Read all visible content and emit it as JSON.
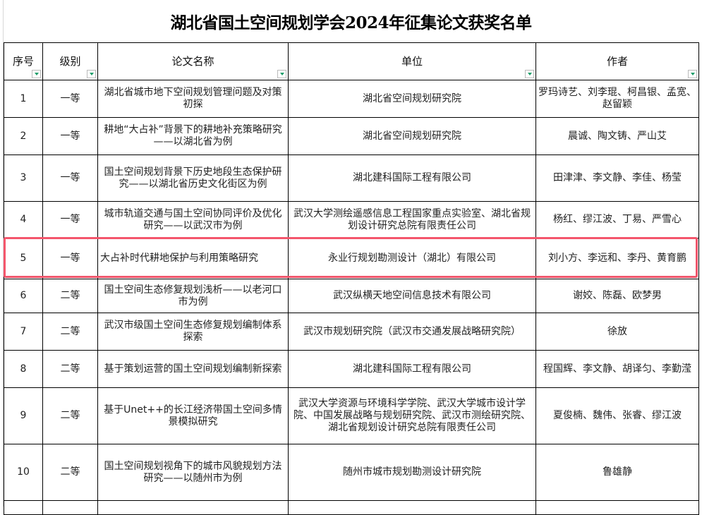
{
  "title": "湖北省国土空间规划学会2024年征集论文获奖名单",
  "columns": [
    "序号",
    "级别",
    "论文名称",
    "单位",
    "作者"
  ],
  "rows": [
    {
      "no": "1",
      "level": "一等",
      "paper": "湖北省城市地下空间规划管理问题及对策初探",
      "unit": "湖北省空间规划研究院",
      "authors": "罗玛诗艺、刘李琨、柯昌银、孟宽、赵留颖"
    },
    {
      "no": "2",
      "level": "一等",
      "paper": "耕地“大占补”背景下的耕地补充策略研究——以湖北省为例",
      "unit": "湖北省空间规划研究院",
      "authors": "晨诚、陶文铸、严山艾"
    },
    {
      "no": "3",
      "level": "一等",
      "paper": "国土空间规划背景下历史地段生态保护研究——以湖北省历史文化街区为例",
      "unit": "湖北建科国际工程有限公司",
      "authors": "田津津、李文静、李佳、杨莹"
    },
    {
      "no": "4",
      "level": "一等",
      "paper": "城市轨道交通与国土空间协同评价及优化研究——以武汉市为例",
      "unit": "武汉大学测绘遥感信息工程国家重点实验室、湖北省规划设计研究总院有限责任公司",
      "authors": "杨红、缪江波、丁易、严雪心"
    },
    {
      "no": "5",
      "level": "一等",
      "paper": "大占补时代耕地保护与利用策略研究",
      "unit": "永业行规划勘测设计（湖北）有限公司",
      "authors": "刘小方、李远和、李丹、黄育鹏"
    },
    {
      "no": "6",
      "level": "二等",
      "paper": "国土空间生态修复规划浅析——以老河口市为例",
      "unit": "武汉纵横天地空间信息技术有限公司",
      "authors": "谢姣、陈磊、欧梦男"
    },
    {
      "no": "7",
      "level": "二等",
      "paper": "武汉市级国土空间生态修复规划编制体系探索",
      "unit": "武汉市规划研究院（武汉市交通发展战略研究院）",
      "authors": "徐放"
    },
    {
      "no": "8",
      "level": "二等",
      "paper": "基于策划运营的国土空间规划编制新探索",
      "unit": "湖北建科国际工程有限公司",
      "authors": "程国辉、李文静、胡译匀、李勤滢"
    },
    {
      "no": "9",
      "level": "二等",
      "paper": "基于Unet++的长江经济带国土空间多情景模拟研究",
      "unit": "武汉大学资源与环境科学学院、武汉大学城市设计学院、中国发展战略与规划研究院、武汉市测绘研究院、湖北省规划设计研究总院有限责任公司",
      "authors": "夏俊楠、魏伟、张睿、缪江波"
    },
    {
      "no": "10",
      "level": "二等",
      "paper": "国土空间规划视角下的城市风貌规划方法研究——以随州市为例",
      "unit": "随州市城市规划勘测设计研究院",
      "authors": "鲁雄静"
    }
  ],
  "highlighted_row": "5",
  "colors": {
    "highlight": "#f4566c",
    "filter_arrow": "#1e9e6a"
  }
}
